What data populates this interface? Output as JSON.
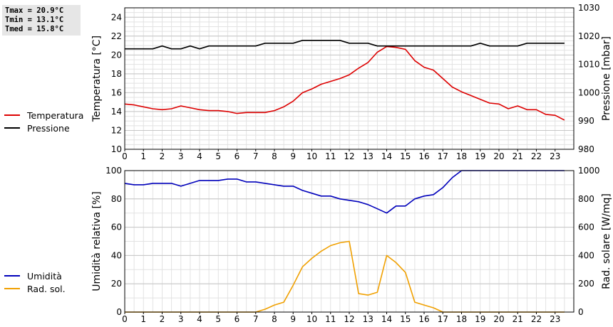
{
  "stats": {
    "tmax": "Tmax = 20.9°C",
    "tmin": "Tmin = 13.1°C",
    "tmed": "Tmed = 15.8°C"
  },
  "legend_top": [
    {
      "label": "Temperatura",
      "color": "#dd0000"
    },
    {
      "label": "Pressione",
      "color": "#000000"
    }
  ],
  "legend_bottom": [
    {
      "label": "Umidità",
      "color": "#0000bb"
    },
    {
      "label": "Rad. sol.",
      "color": "#f0a000"
    }
  ],
  "chart_data": [
    {
      "type": "line",
      "xlim": [
        0,
        24
      ],
      "xticks": [
        0,
        1,
        2,
        3,
        4,
        5,
        6,
        7,
        8,
        9,
        10,
        11,
        12,
        13,
        14,
        15,
        16,
        17,
        18,
        19,
        20,
        21,
        22,
        23
      ],
      "ylabel": "Temperatura [°C]",
      "ylim": [
        10,
        25
      ],
      "yticks": [
        10,
        12,
        14,
        16,
        18,
        20,
        22,
        24
      ],
      "y2label": "Pressione [mbar]",
      "y2lim": [
        980,
        1030
      ],
      "y2ticks": [
        980,
        990,
        1000,
        1010,
        1020,
        1030
      ],
      "grid": true,
      "series": [
        {
          "name": "Temperatura",
          "axis": "left",
          "color": "#dd0000",
          "x": [
            0,
            0.5,
            1,
            1.5,
            2,
            2.5,
            3,
            3.5,
            4,
            4.5,
            5,
            5.5,
            6,
            6.5,
            7,
            7.5,
            8,
            8.5,
            9,
            9.5,
            10,
            10.5,
            11,
            11.5,
            12,
            12.5,
            13,
            13.5,
            14,
            14.5,
            15,
            15.5,
            16,
            16.5,
            17,
            17.5,
            18,
            18.5,
            19,
            19.5,
            20,
            20.5,
            21,
            21.5,
            22,
            22.5,
            23,
            23.5
          ],
          "y": [
            14.8,
            14.7,
            14.5,
            14.3,
            14.2,
            14.3,
            14.6,
            14.4,
            14.2,
            14.1,
            14.1,
            14.0,
            13.8,
            13.9,
            13.9,
            13.9,
            14.1,
            14.5,
            15.1,
            16.0,
            16.4,
            16.9,
            17.2,
            17.5,
            17.9,
            18.6,
            19.2,
            20.3,
            20.9,
            20.8,
            20.6,
            19.4,
            18.7,
            18.4,
            17.5,
            16.6,
            16.1,
            15.7,
            15.3,
            14.9,
            14.8,
            14.3,
            14.6,
            14.2,
            14.2,
            13.7,
            13.6,
            13.1
          ]
        },
        {
          "name": "Pressione",
          "axis": "right",
          "color": "#000000",
          "x": [
            0,
            0.5,
            1,
            1.5,
            2,
            2.5,
            3,
            3.5,
            4,
            4.5,
            5,
            5.5,
            6,
            6.5,
            7,
            7.5,
            8,
            8.5,
            9,
            9.5,
            10,
            10.5,
            11,
            11.5,
            12,
            12.5,
            13,
            13.5,
            14,
            14.5,
            15,
            15.5,
            16,
            16.5,
            17,
            17.5,
            18,
            18.5,
            19,
            19.5,
            20,
            20.5,
            21,
            21.5,
            22,
            22.5,
            23,
            23.5
          ],
          "y": [
            1015.5,
            1015.5,
            1015.5,
            1015.5,
            1016.5,
            1015.5,
            1015.5,
            1016.5,
            1015.5,
            1016.5,
            1016.5,
            1016.5,
            1016.5,
            1016.5,
            1016.5,
            1017.5,
            1017.5,
            1017.5,
            1017.5,
            1018.5,
            1018.5,
            1018.5,
            1018.5,
            1018.5,
            1017.5,
            1017.5,
            1017.5,
            1016.5,
            1016.5,
            1016.5,
            1016.5,
            1016.5,
            1016.5,
            1016.5,
            1016.5,
            1016.5,
            1016.5,
            1016.5,
            1017.5,
            1016.5,
            1016.5,
            1016.5,
            1016.5,
            1017.5,
            1017.5,
            1017.5,
            1017.5,
            1017.5
          ]
        }
      ]
    },
    {
      "type": "line",
      "xlim": [
        0,
        24
      ],
      "xticks": [
        0,
        1,
        2,
        3,
        4,
        5,
        6,
        7,
        8,
        9,
        10,
        11,
        12,
        13,
        14,
        15,
        16,
        17,
        18,
        19,
        20,
        21,
        22,
        23
      ],
      "ylabel": "Umidità relativa [%]",
      "ylim": [
        0,
        100
      ],
      "yticks": [
        0,
        20,
        40,
        60,
        80,
        100
      ],
      "y2label": "Rad. solare [W/mq]",
      "y2lim": [
        0,
        1000
      ],
      "y2ticks": [
        0,
        200,
        400,
        600,
        800,
        1000
      ],
      "grid": true,
      "series": [
        {
          "name": "Umidità",
          "axis": "left",
          "color": "#0000bb",
          "x": [
            0,
            0.5,
            1,
            1.5,
            2,
            2.5,
            3,
            3.5,
            4,
            4.5,
            5,
            5.5,
            6,
            6.5,
            7,
            7.5,
            8,
            8.5,
            9,
            9.5,
            10,
            10.5,
            11,
            11.5,
            12,
            12.5,
            13,
            13.5,
            14,
            14.5,
            15,
            15.5,
            16,
            16.5,
            17,
            17.5,
            18,
            18.5,
            19,
            19.5,
            20,
            20.5,
            21,
            21.5,
            22,
            22.5,
            23,
            23.5
          ],
          "y": [
            91,
            90,
            90,
            91,
            91,
            91,
            89,
            91,
            93,
            93,
            93,
            94,
            94,
            92,
            92,
            91,
            90,
            89,
            89,
            86,
            84,
            82,
            82,
            80,
            79,
            78,
            76,
            73,
            70,
            75,
            75,
            80,
            82,
            83,
            88,
            95,
            100,
            100,
            100,
            100,
            100,
            100,
            100,
            100,
            100,
            100,
            100,
            100
          ]
        },
        {
          "name": "Rad. sol.",
          "axis": "right",
          "color": "#f0a000",
          "x": [
            0,
            0.5,
            1,
            1.5,
            2,
            2.5,
            3,
            3.5,
            4,
            4.5,
            5,
            5.5,
            6,
            6.5,
            7,
            7.5,
            8,
            8.5,
            9,
            9.5,
            10,
            10.5,
            11,
            11.5,
            12,
            12.5,
            13,
            13.5,
            14,
            14.5,
            15,
            15.5,
            16,
            16.5,
            17,
            17.5,
            18,
            18.5,
            19,
            19.5,
            20,
            20.5,
            21,
            21.5,
            22,
            22.5,
            23,
            23.5
          ],
          "y": [
            0,
            0,
            0,
            0,
            0,
            0,
            0,
            0,
            0,
            0,
            0,
            0,
            0,
            0,
            0,
            20,
            50,
            70,
            190,
            320,
            380,
            430,
            470,
            490,
            500,
            130,
            120,
            140,
            400,
            350,
            280,
            70,
            50,
            30,
            0,
            0,
            0,
            0,
            0,
            0,
            0,
            0,
            0,
            0,
            0,
            0,
            0,
            0
          ]
        }
      ]
    }
  ]
}
